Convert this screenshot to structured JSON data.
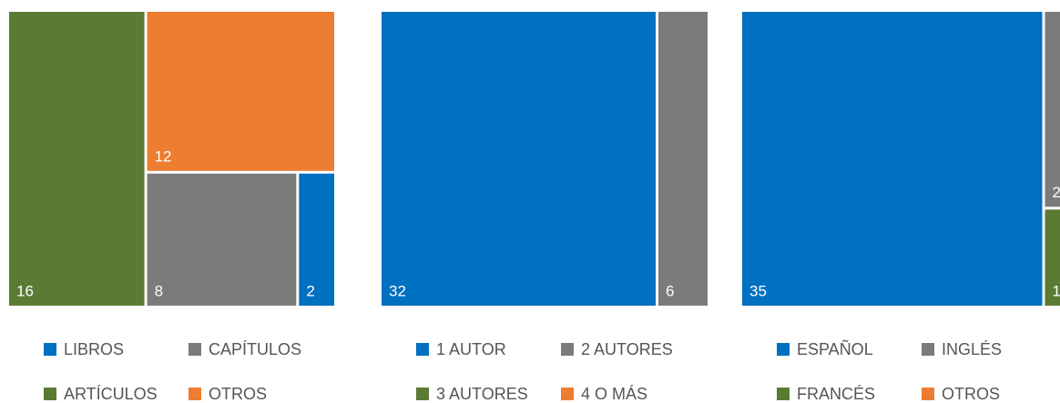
{
  "chart_data": [
    {
      "type": "treemap",
      "categories": [
        "LIBROS",
        "CAPÍTULOS",
        "ARTÍCULOS",
        "OTROS"
      ],
      "values": [
        2,
        8,
        16,
        12
      ],
      "colors": [
        "#0070c0",
        "#7b7b7b",
        "#5b7b35",
        "#ed7d31"
      ]
    },
    {
      "type": "treemap",
      "categories": [
        "1 AUTOR",
        "2 AUTORES",
        "3 AUTORES",
        "4 O MÁS"
      ],
      "values": [
        32,
        6,
        null,
        null
      ],
      "colors": [
        "#0070c0",
        "#7b7b7b",
        "#5b7b35",
        "#ed7d31"
      ]
    },
    {
      "type": "treemap",
      "categories": [
        "ESPAÑOL",
        "INGLÉS",
        "FRANCÉS",
        "OTROS"
      ],
      "values": [
        35,
        2,
        1,
        null
      ],
      "colors": [
        "#0070c0",
        "#7b7b7b",
        "#5b7b35",
        "#ed7d31"
      ]
    }
  ]
}
